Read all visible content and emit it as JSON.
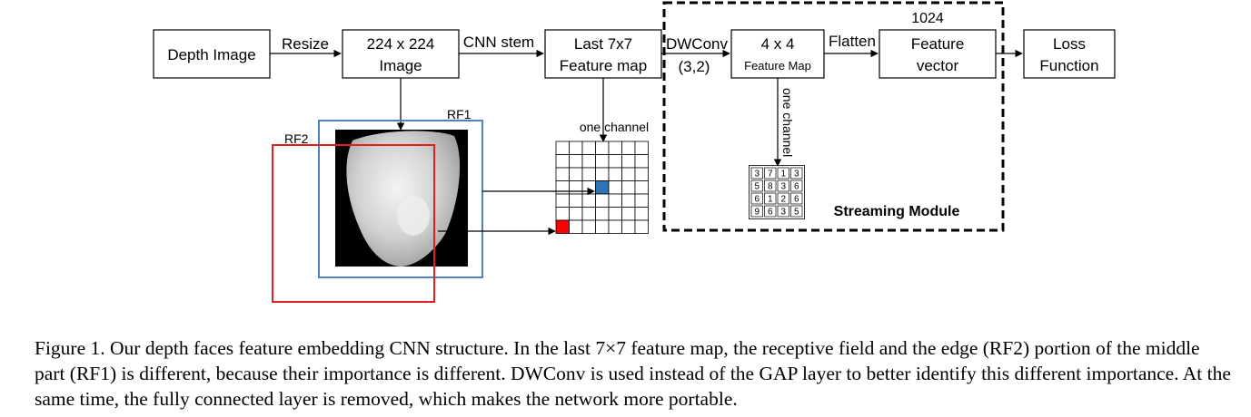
{
  "diagram": {
    "nodes": {
      "depth_image": "Depth Image",
      "image_224_line1": "224 x 224",
      "image_224_line2": "Image",
      "last7x7_line1": "Last 7x7",
      "last7x7_line2": "Feature map",
      "fmap4x4_line1": "4 x 4",
      "fmap4x4_line2": "Feature Map",
      "feature_vector_line1": "Feature",
      "feature_vector_line2": "vector",
      "loss_line1": "Loss",
      "loss_line2": "Function"
    },
    "edges": {
      "resize": "Resize",
      "cnn_stem": "CNN stem",
      "dwconv_line1": "DWConv",
      "dwconv_line2": "(3,2)",
      "flatten": "Flatten",
      "one_channel_left": "one channel",
      "one_channel_right": "one channel"
    },
    "labels": {
      "dim_1024": "1024",
      "streaming_module": "Streaming Module",
      "rf1": "RF1",
      "rf2": "RF2"
    },
    "matrix_4x4": [
      [
        "3",
        "7",
        "1",
        "3"
      ],
      [
        "5",
        "8",
        "3",
        "6"
      ],
      [
        "6",
        "1",
        "2",
        "6"
      ],
      [
        "9",
        "6",
        "3",
        "5"
      ]
    ],
    "colors": {
      "rf1": "#4f81bd",
      "rf2": "#e02020",
      "cell_blue": "#2e75b6",
      "cell_red": "#ff0000"
    }
  },
  "caption": "Figure 1. Our depth faces feature embedding CNN structure. In the last 7×7 feature map, the receptive field and the edge (RF2) portion of the middle part (RF1) is different, because their importance is different. DWConv is used instead of the GAP layer to better identify this different importance. At the same time, the fully connected layer is removed, which makes the network more portable."
}
